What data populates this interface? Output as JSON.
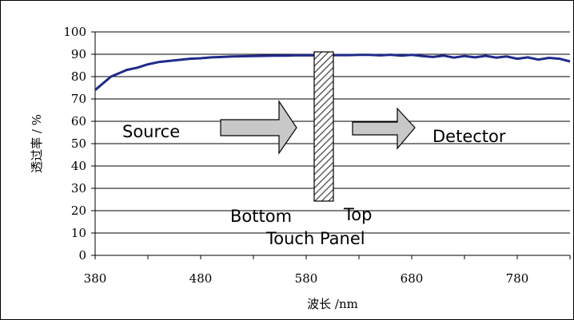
{
  "chart_data": {
    "type": "line",
    "title": "",
    "xlabel": "波长 /nm",
    "ylabel": "透过率 / %",
    "xlim": [
      380,
      830
    ],
    "ylim": [
      0,
      100
    ],
    "x_ticks": [
      380,
      480,
      580,
      680,
      780
    ],
    "y_ticks": [
      0,
      10,
      20,
      30,
      40,
      50,
      60,
      70,
      80,
      90,
      100
    ],
    "grid": "horizontal",
    "series": [
      {
        "color": "#1f2a8a",
        "x": [
          380,
          385,
          390,
          395,
          400,
          410,
          420,
          430,
          440,
          450,
          460,
          470,
          480,
          490,
          500,
          510,
          520,
          530,
          540,
          550,
          560,
          570,
          580,
          590,
          600,
          610,
          620,
          630,
          640,
          650,
          660,
          670,
          680,
          690,
          700,
          710,
          720,
          730,
          740,
          750,
          760,
          770,
          780,
          790,
          800,
          810,
          820,
          830
        ],
        "y": [
          74,
          76,
          78,
          80,
          81,
          83,
          84,
          85.5,
          86.5,
          87,
          87.5,
          88,
          88.2,
          88.6,
          88.8,
          89,
          89.1,
          89.2,
          89.3,
          89.4,
          89.4,
          89.5,
          89.5,
          89.5,
          89.6,
          89.6,
          89.6,
          89.7,
          89.7,
          89.5,
          89.8,
          89.4,
          89.7,
          89.2,
          88.8,
          89.4,
          88.5,
          89.2,
          88.6,
          89.3,
          88.5,
          89,
          88,
          88.6,
          87.6,
          88.4,
          88,
          86.8
        ]
      }
    ],
    "annotations": {
      "source": "Source",
      "detector": "Detector",
      "bottom": "Bottom",
      "top": "Top",
      "panel": "Touch Panel"
    }
  }
}
